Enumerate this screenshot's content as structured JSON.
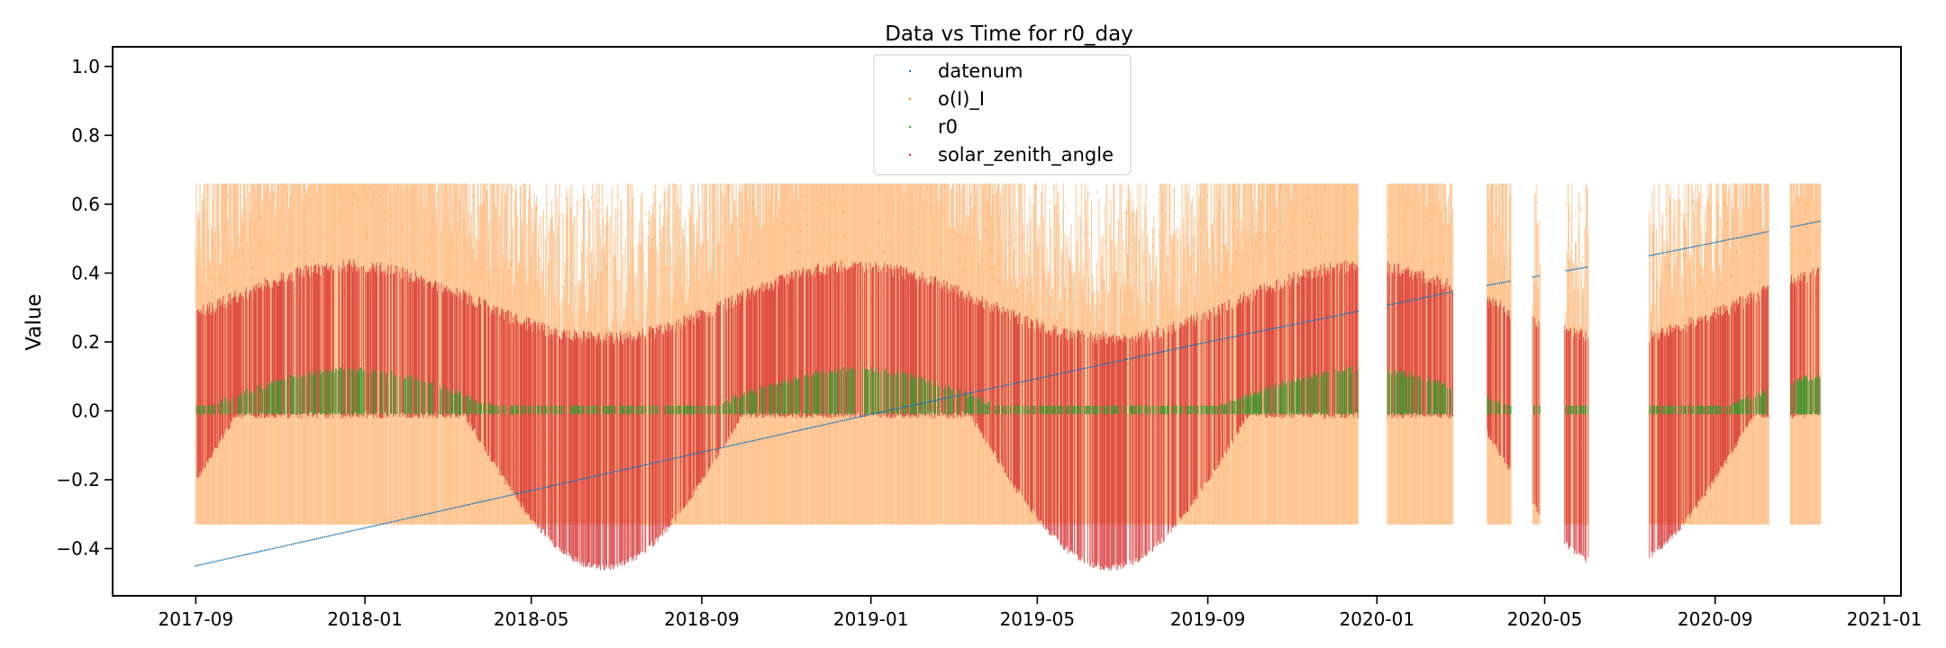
{
  "chart_data": {
    "type": "scatter",
    "title": "Data vs Time for r0_day",
    "xlabel": "",
    "ylabel": "Value",
    "x_ticks": [
      "2017-09",
      "2018-01",
      "2018-05",
      "2018-09",
      "2019-01",
      "2019-05",
      "2019-09",
      "2020-01",
      "2020-05",
      "2020-09",
      "2021-01"
    ],
    "y_ticks": [
      "−0.4",
      "−0.2",
      "0.0",
      "0.2",
      "0.4",
      "0.6",
      "0.8",
      "1.0"
    ],
    "xlim": [
      "2017-07-03",
      "2021-01-13"
    ],
    "ylim": [
      -0.537,
      1.057
    ],
    "grid": false,
    "legend_position": "upper center",
    "legend": [
      "datenum",
      "o(I)_I",
      "r0",
      "solar_zenith_angle"
    ],
    "series": [
      {
        "name": "datenum",
        "color": "#1f77b4",
        "marker": "point",
        "points": [
          [
            "2017-09-01",
            -0.45
          ],
          [
            "2018-01-01",
            -0.34
          ],
          [
            "2018-09-01",
            -0.12
          ],
          [
            "2019-01-01",
            -0.01
          ],
          [
            "2019-09-01",
            0.2
          ],
          [
            "2020-01-01",
            0.3
          ],
          [
            "2020-03-01",
            0.35
          ],
          [
            "2020-07-15",
            0.45
          ],
          [
            "2020-11-15",
            0.55
          ]
        ]
      },
      {
        "name": "o(I)_I",
        "color": "#ff7f0e",
        "marker": "point",
        "points": [
          [
            "2017-09-01",
            -0.33
          ],
          [
            "2017-09-01",
            0.66
          ],
          [
            "2017-12-20",
            -0.01
          ],
          [
            "2018-06-21",
            -0.33
          ],
          [
            "2018-06-21",
            0.66
          ],
          [
            "2018-12-20",
            -0.01
          ],
          [
            "2019-06-21",
            -0.33
          ],
          [
            "2019-06-21",
            0.66
          ],
          [
            "2019-12-20",
            -0.01
          ],
          [
            "2020-11-15",
            -0.33
          ],
          [
            "2020-11-15",
            0.66
          ]
        ]
      },
      {
        "name": "r0",
        "color": "#2ca02c",
        "marker": "point",
        "points": [
          [
            "2017-09-01",
            0.02
          ],
          [
            "2017-12-20",
            0.12
          ],
          [
            "2018-06-21",
            0.0
          ],
          [
            "2018-12-20",
            0.12
          ],
          [
            "2019-06-21",
            0.0
          ],
          [
            "2019-12-20",
            0.12
          ],
          [
            "2020-03-01",
            0.03
          ],
          [
            "2020-11-15",
            0.06
          ]
        ]
      },
      {
        "name": "solar_zenith_angle",
        "color": "#d62728",
        "marker": "point",
        "points": [
          [
            "2017-09-01",
            -0.28
          ],
          [
            "2017-09-01",
            0.34
          ],
          [
            "2017-12-20",
            0.44
          ],
          [
            "2018-06-21",
            -0.47
          ],
          [
            "2018-06-21",
            0.25
          ],
          [
            "2018-12-20",
            0.44
          ],
          [
            "2019-06-21",
            -0.47
          ],
          [
            "2019-06-21",
            0.23
          ],
          [
            "2019-12-20",
            0.44
          ],
          [
            "2020-06-01",
            -0.45
          ],
          [
            "2020-07-15",
            -0.44
          ],
          [
            "2020-11-15",
            0.43
          ]
        ]
      }
    ],
    "data_gaps": [
      [
        "2019-12-19",
        "2020-01-08"
      ],
      [
        "2020-02-25",
        "2020-03-20"
      ],
      [
        "2020-04-07",
        "2020-04-22"
      ],
      [
        "2020-04-28",
        "2020-05-15"
      ],
      [
        "2020-06-02",
        "2020-07-15"
      ],
      [
        "2020-10-10",
        "2020-10-25"
      ]
    ]
  }
}
